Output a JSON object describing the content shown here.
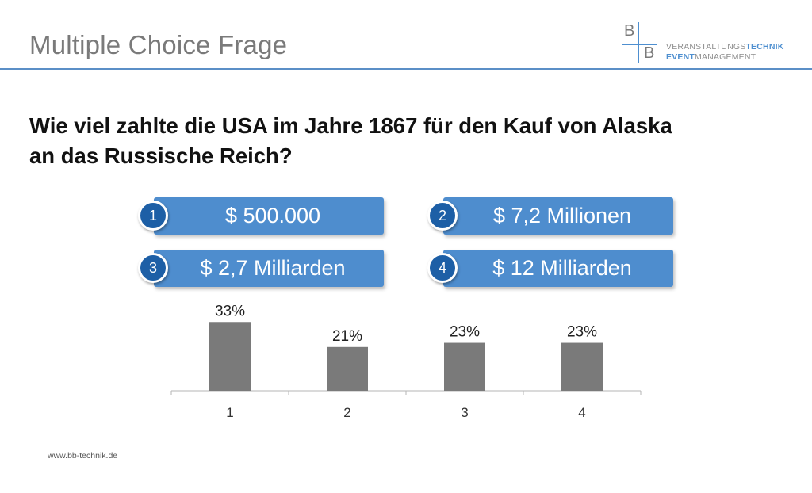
{
  "slide": {
    "title": "Multiple Choice Frage",
    "question_line1": "Wie viel zahlte die USA im Jahre 1867 für den Kauf von Alaska",
    "question_line2": "an das Russische Reich?",
    "footer": "www.bb-technik.de"
  },
  "logo": {
    "letter_top": "B",
    "letter_bottom": "B",
    "line1_a": "VERANSTALTUNGS",
    "line1_b": "TECHNIK",
    "line2_a": "EVENT",
    "line2_b": "MANAGEMENT"
  },
  "answers": [
    {
      "number": "1",
      "label": "$ 500.000"
    },
    {
      "number": "2",
      "label": "$ 7,2 Millionen"
    },
    {
      "number": "3",
      "label": "$ 2,7 Milliarden"
    },
    {
      "number": "4",
      "label": "$ 12 Milliarden"
    }
  ],
  "colors": {
    "accent": "#4e8dce",
    "number_badge": "#1d5fa6",
    "bar": "#7a7a7a",
    "rule": "#5b8fc7"
  },
  "chart_data": {
    "type": "bar",
    "title": "",
    "xlabel": "",
    "ylabel": "",
    "categories": [
      "1",
      "2",
      "3",
      "4"
    ],
    "values": [
      33,
      21,
      23,
      23
    ],
    "value_labels": [
      "33%",
      "21%",
      "23%",
      "23%"
    ],
    "ylim": [
      0,
      35
    ],
    "grid": false,
    "legend": "none"
  }
}
